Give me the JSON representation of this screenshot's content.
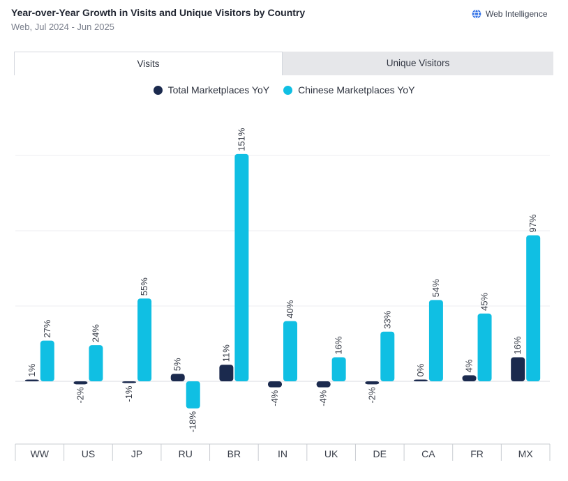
{
  "header": {
    "title": "Year-over-Year Growth in Visits and Unique Visitors by Country",
    "subtitle": "Web, Jul 2024 - Jun 2025",
    "brand": "Web Intelligence"
  },
  "tabs": [
    {
      "label": "Visits",
      "active": true
    },
    {
      "label": "Unique Visitors",
      "active": false
    }
  ],
  "colors": {
    "total": "#1b2a4e",
    "chinese": "#10bfe3",
    "grid": "#eceef1",
    "axis": "#c9ccd2"
  },
  "chart_data": {
    "type": "bar",
    "categories": [
      "WW",
      "US",
      "JP",
      "RU",
      "BR",
      "IN",
      "UK",
      "DE",
      "CA",
      "FR",
      "MX"
    ],
    "series": [
      {
        "name": "Total Marketplaces YoY",
        "values": [
          1,
          -2,
          -1,
          5,
          11,
          -4,
          -4,
          -2,
          0,
          4,
          16
        ],
        "labels": [
          "1%",
          "-2%",
          "-1%",
          "5%",
          "11%",
          "-4%",
          "-4%",
          "-2%",
          "0%",
          "4%",
          "16%"
        ]
      },
      {
        "name": "Chinese Marketplaces YoY",
        "values": [
          27,
          24,
          55,
          -18,
          151,
          40,
          16,
          33,
          54,
          45,
          97
        ],
        "labels": [
          "27%",
          "24%",
          "55%",
          "-18%",
          "151%",
          "40%",
          "16%",
          "33%",
          "54%",
          "45%",
          "97%"
        ]
      }
    ],
    "ylim": [
      -40,
      160
    ],
    "grid": true,
    "legend_position": "top-center"
  }
}
